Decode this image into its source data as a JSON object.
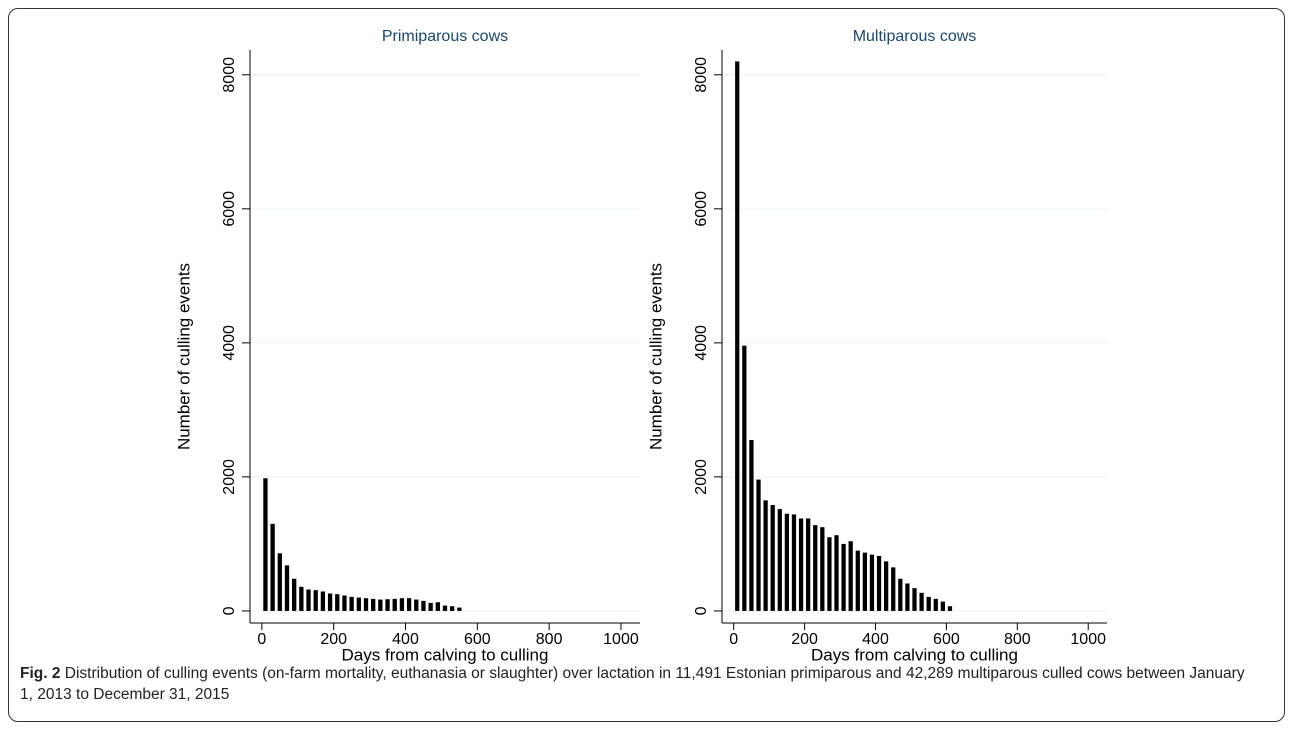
{
  "chart_data": [
    {
      "type": "histogram",
      "title": "Primiparous cows",
      "x_label": "Days from calving to culling",
      "y_label": "Number of culling events",
      "bins": [
        0,
        20,
        40,
        60,
        80,
        100,
        120,
        140,
        160,
        180,
        200,
        220,
        240,
        260,
        280,
        300,
        320,
        340,
        360,
        380,
        400,
        420,
        440,
        460,
        480,
        500,
        520,
        540,
        560
      ],
      "values": [
        1980,
        1300,
        860,
        680,
        480,
        360,
        320,
        310,
        290,
        260,
        250,
        230,
        210,
        200,
        190,
        180,
        170,
        175,
        180,
        190,
        190,
        170,
        150,
        120,
        130,
        80,
        70,
        50
      ],
      "color": "#000000",
      "xlim": [
        -33,
        1053
      ],
      "ylim": [
        -180,
        8370
      ],
      "xticks": [
        0,
        200,
        400,
        600,
        800,
        1000
      ],
      "yticks": [
        0,
        2000,
        4000,
        6000,
        8000
      ],
      "grid": true
    },
    {
      "type": "histogram",
      "title": "Multiparous cows",
      "x_label": "Days from calving to culling",
      "y_label": "Number of culling events",
      "bins": [
        0,
        20,
        40,
        60,
        80,
        100,
        120,
        140,
        160,
        180,
        200,
        220,
        240,
        260,
        280,
        300,
        320,
        340,
        360,
        380,
        400,
        420,
        440,
        460,
        480,
        500,
        520,
        540,
        560,
        580,
        600,
        620
      ],
      "values": [
        8200,
        3958,
        2550,
        1960,
        1650,
        1580,
        1520,
        1450,
        1440,
        1380,
        1380,
        1280,
        1250,
        1100,
        1130,
        1000,
        1040,
        900,
        870,
        840,
        820,
        740,
        650,
        480,
        410,
        340,
        270,
        210,
        180,
        140,
        70
      ],
      "color": "#000000",
      "xlim": [
        -33,
        1053
      ],
      "ylim": [
        -180,
        8370
      ],
      "xticks": [
        0,
        200,
        400,
        600,
        800,
        1000
      ],
      "yticks": [
        0,
        2000,
        4000,
        6000,
        8000
      ],
      "grid": true
    }
  ],
  "caption": {
    "label": "Fig. 2",
    "text": "Distribution of culling events (on-farm mortality, euthanasia or slaughter) over lactation in 11,491 Estonian primiparous and 42,289 multiparous culled cows between January 1, 2013 to December 31, 2015"
  }
}
